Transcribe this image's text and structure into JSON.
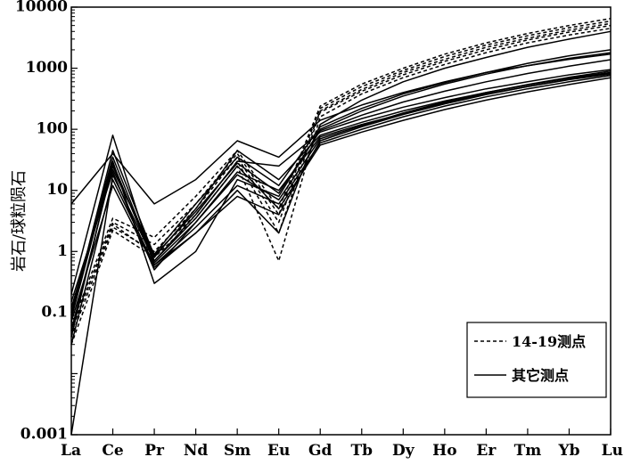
{
  "chart_data": {
    "type": "line",
    "y_scale": "log",
    "ylim": [
      0.001,
      10000
    ],
    "ylabel": "岩石/球粒陨石",
    "xlabel": "",
    "categories": [
      "La",
      "Ce",
      "Pr",
      "Nd",
      "Sm",
      "Eu",
      "Gd",
      "Tb",
      "Dy",
      "Ho",
      "Er",
      "Tm",
      "Yb",
      "Lu"
    ],
    "y_ticks": [
      0.001,
      0.1,
      1,
      10,
      100,
      1000,
      10000
    ],
    "y_tick_labels": [
      "0.001",
      "0.1",
      "1",
      "10",
      "100",
      "1000",
      "10000"
    ],
    "grid": false,
    "legend": {
      "placement": "bottom-right",
      "entries": [
        {
          "label": "14-19测点",
          "style": "dashed"
        },
        {
          "label": "其它测点",
          "style": "solid"
        }
      ]
    },
    "series": [
      {
        "group": "14-19测点",
        "style": "dashed",
        "values": [
          0.06,
          3.5,
          1.7,
          8,
          45,
          5,
          240,
          550,
          1000,
          1700,
          2600,
          3700,
          5000,
          6500
        ]
      },
      {
        "group": "14-19测点",
        "style": "dashed",
        "values": [
          0.05,
          3.0,
          1.3,
          6,
          40,
          4,
          220,
          500,
          920,
          1550,
          2400,
          3400,
          4600,
          5900
        ]
      },
      {
        "group": "14-19测点",
        "style": "dashed",
        "values": [
          0.04,
          2.5,
          1.0,
          5,
          35,
          3,
          200,
          450,
          850,
          1400,
          2200,
          3100,
          4200,
          5400
        ]
      },
      {
        "group": "14-19测点",
        "style": "dashed",
        "values": [
          0.05,
          2.8,
          0.9,
          4,
          30,
          2,
          190,
          420,
          780,
          1300,
          2000,
          2900,
          3900,
          5000
        ]
      },
      {
        "group": "14-19测点",
        "style": "dashed",
        "values": [
          0.03,
          2.2,
          0.8,
          3.5,
          25,
          0.7,
          160,
          380,
          700,
          1150,
          1800,
          2600,
          3500,
          4500
        ]
      },
      {
        "group": "其它测点",
        "style": "solid",
        "values": [
          6,
          40,
          6,
          15,
          65,
          35,
          140,
          250,
          400,
          600,
          850,
          1100,
          1400,
          1700
        ]
      },
      {
        "group": "其它测点",
        "style": "solid",
        "values": [
          0.2,
          80,
          0.6,
          2,
          10,
          2,
          120,
          300,
          600,
          1000,
          1500,
          2200,
          3000,
          4000
        ]
      },
      {
        "group": "其它测点",
        "style": "solid",
        "values": [
          0.1,
          35,
          0.7,
          4,
          30,
          25,
          90,
          150,
          230,
          330,
          460,
          600,
          780,
          950
        ]
      },
      {
        "group": "其它测点",
        "style": "solid",
        "values": [
          0.05,
          25,
          0.8,
          5,
          45,
          15,
          80,
          130,
          200,
          290,
          400,
          530,
          690,
          850
        ]
      },
      {
        "group": "其它测点",
        "style": "solid",
        "values": [
          0.15,
          20,
          0.5,
          3,
          20,
          10,
          75,
          120,
          180,
          270,
          380,
          500,
          650,
          800
        ]
      },
      {
        "group": "其它测点",
        "style": "solid",
        "values": [
          0.08,
          30,
          0.3,
          1,
          15,
          8,
          100,
          200,
          350,
          550,
          800,
          1100,
          1450,
          1800
        ]
      },
      {
        "group": "其它测点",
        "style": "solid",
        "values": [
          0.03,
          15,
          0.6,
          2.5,
          12,
          6,
          60,
          100,
          160,
          240,
          340,
          460,
          600,
          760
        ]
      },
      {
        "group": "其它测点",
        "style": "solid",
        "values": [
          0.001,
          18,
          0.7,
          3.5,
          25,
          5,
          55,
          90,
          140,
          210,
          300,
          410,
          540,
          700
        ]
      },
      {
        "group": "其它测点",
        "style": "solid",
        "values": [
          0.12,
          22,
          0.9,
          6,
          35,
          12,
          110,
          220,
          380,
          580,
          850,
          1200,
          1600,
          2000
        ]
      },
      {
        "group": "其它测点",
        "style": "solid",
        "values": [
          0.07,
          12,
          0.55,
          2,
          8,
          4,
          65,
          110,
          175,
          260,
          370,
          500,
          660,
          830
        ]
      },
      {
        "group": "其它测点",
        "style": "solid",
        "values": [
          0.04,
          28,
          0.65,
          3,
          18,
          7,
          70,
          115,
          185,
          280,
          400,
          540,
          710,
          900
        ]
      },
      {
        "group": "其它测点",
        "style": "solid",
        "values": [
          0.09,
          45,
          0.85,
          4.5,
          28,
          9,
          95,
          170,
          280,
          420,
          600,
          820,
          1080,
          1380
        ]
      }
    ]
  }
}
